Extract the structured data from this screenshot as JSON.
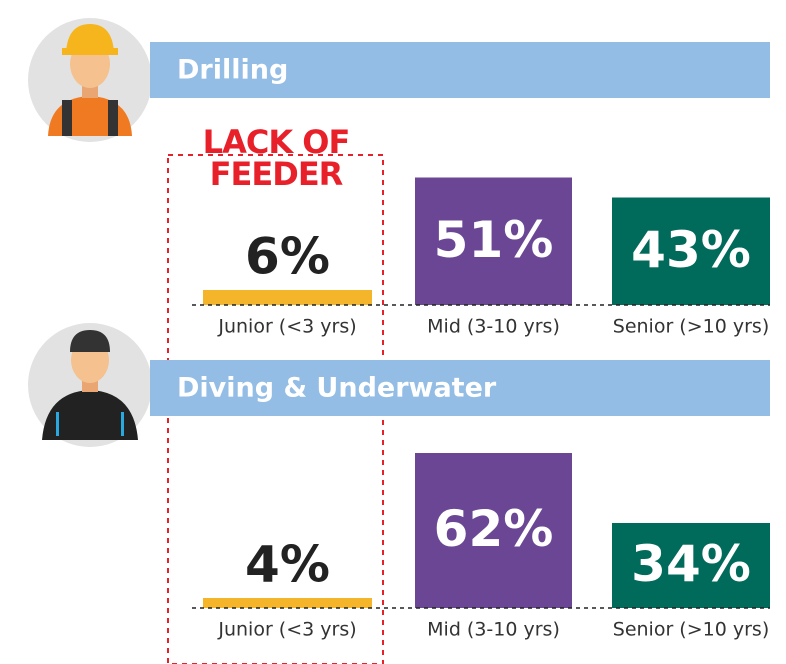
{
  "chart_data": [
    {
      "type": "bar",
      "title": "Drilling",
      "annotation": "LACK OF FEEDER",
      "categories": [
        "Junior (<3 yrs)",
        "Mid (3-10 yrs)",
        "Senior (>10 yrs)"
      ],
      "values": [
        6,
        51,
        43
      ],
      "value_labels": [
        "6%",
        "51%",
        "43%"
      ],
      "colors": [
        "#f5b52a",
        "#6a4694",
        "#006a5b"
      ]
    },
    {
      "type": "bar",
      "title": "Diving & Underwater",
      "categories": [
        "Junior (<3 yrs)",
        "Mid (3-10 yrs)",
        "Senior (>10 yrs)"
      ],
      "values": [
        4,
        62,
        34
      ],
      "value_labels": [
        "4%",
        "62%",
        "34%"
      ],
      "colors": [
        "#f5b52a",
        "#6a4694",
        "#006a5b"
      ]
    }
  ]
}
